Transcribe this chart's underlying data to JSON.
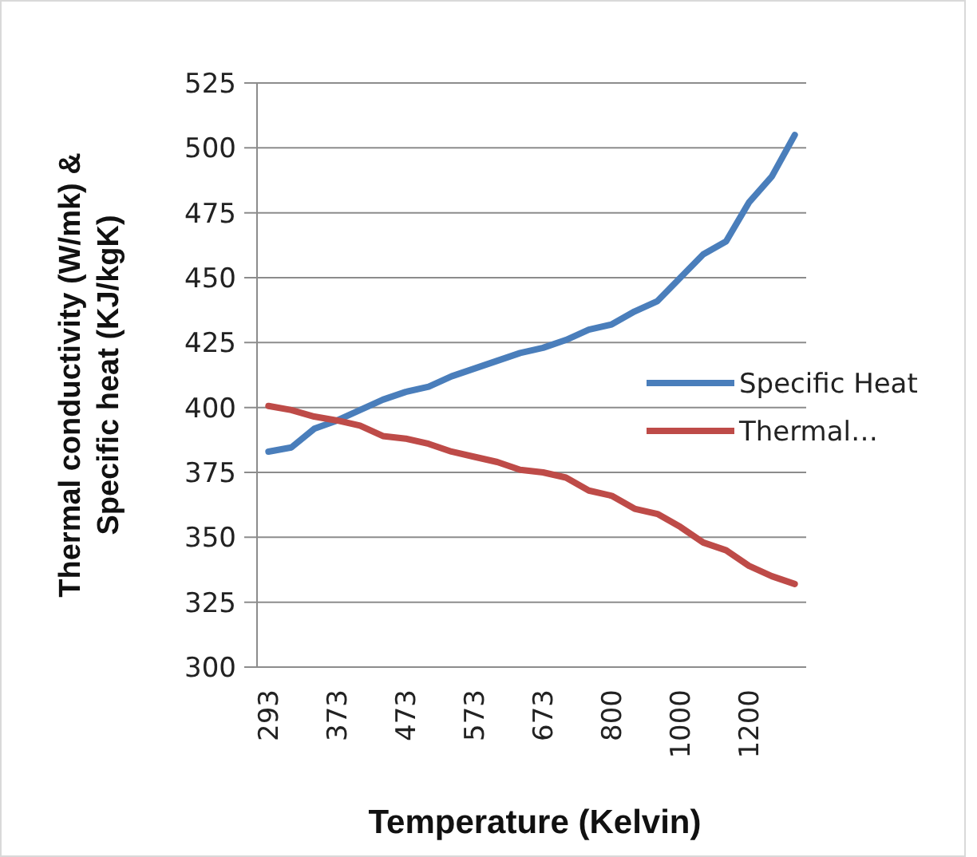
{
  "chart_data": {
    "type": "line",
    "xlabel": "Temperature (Kelvin)",
    "ylabel": "Thermal conductivity (W/mk) &\nSpecific heat (KJ/kgK)",
    "categories": [
      "293",
      null,
      null,
      "373",
      null,
      null,
      "473",
      null,
      null,
      "573",
      null,
      null,
      "673",
      null,
      null,
      "800",
      null,
      null,
      "1000",
      null,
      null,
      "1200",
      null,
      null
    ],
    "series": [
      {
        "name": "Specific Heat",
        "color": "#4a7ebb",
        "values": [
          383,
          384.6,
          391.8,
          395,
          399,
          403,
          406,
          408,
          412,
          415,
          418,
          421,
          423,
          426,
          430,
          432,
          437,
          441,
          450,
          459,
          464,
          479,
          489,
          505
        ]
      },
      {
        "name": "Thermal…",
        "color": "#be4b48",
        "values": [
          400.6,
          399,
          396.5,
          395,
          393,
          389,
          388,
          386,
          383,
          381,
          379,
          376,
          375,
          373,
          368,
          366,
          361,
          359,
          354,
          348,
          345,
          339,
          335,
          332
        ]
      }
    ],
    "ylim": [
      300,
      525
    ],
    "yticks": [
      300,
      325,
      350,
      375,
      400,
      425,
      450,
      475,
      500,
      525
    ],
    "grid": "y",
    "legend": "right",
    "line_style": "solid",
    "marker": "none"
  }
}
